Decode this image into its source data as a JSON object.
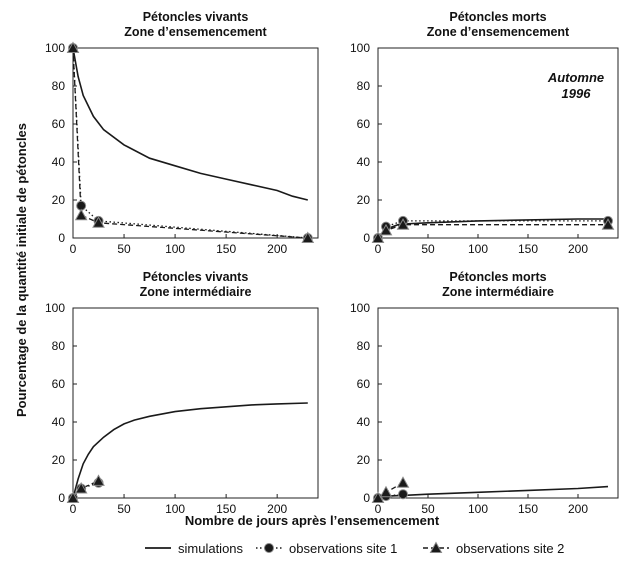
{
  "chart_data": [
    {
      "type": "line",
      "title": [
        "Pétoncles vivants",
        "Zone d’ensemencement"
      ],
      "xlim": [
        0,
        240
      ],
      "ylim": [
        0,
        100
      ],
      "xticks": [
        "0",
        "50",
        "100",
        "150",
        "200"
      ],
      "yticks": [
        "0",
        "20",
        "40",
        "60",
        "80",
        "100"
      ],
      "annotation": [],
      "series": [
        {
          "name": "simulations",
          "style": "solid",
          "x": [
            0,
            5,
            10,
            20,
            30,
            50,
            75,
            100,
            125,
            150,
            175,
            200,
            215,
            230
          ],
          "y": [
            100,
            85,
            75,
            64,
            57,
            49,
            42,
            38,
            34,
            31,
            28,
            25,
            22,
            20
          ]
        },
        {
          "name": "observations site 1",
          "style": "dotted",
          "marker": "circle",
          "x": [
            0,
            8,
            25,
            230
          ],
          "y": [
            100,
            17,
            9,
            0
          ]
        },
        {
          "name": "observations site 2",
          "style": "dashed",
          "marker": "triangle",
          "x": [
            0,
            8,
            25,
            230
          ],
          "y": [
            100,
            12,
            8,
            0
          ]
        }
      ]
    },
    {
      "type": "line",
      "title": [
        "Pétoncles morts",
        "Zone d’ensemencement"
      ],
      "xlim": [
        0,
        240
      ],
      "ylim": [
        0,
        100
      ],
      "xticks": [
        "0",
        "50",
        "100",
        "150",
        "200"
      ],
      "yticks": [
        "0",
        "20",
        "40",
        "60",
        "80",
        "100"
      ],
      "annotation": [
        "Automne",
        "1996"
      ],
      "series": [
        {
          "name": "simulations",
          "style": "solid",
          "x": [
            0,
            5,
            10,
            20,
            30,
            50,
            100,
            150,
            200,
            230
          ],
          "y": [
            0,
            3,
            5,
            7,
            7.5,
            8,
            9,
            9.5,
            10,
            10
          ]
        },
        {
          "name": "observations site 1",
          "style": "dotted",
          "marker": "circle",
          "x": [
            0,
            8,
            25,
            230
          ],
          "y": [
            0,
            6,
            9,
            9
          ]
        },
        {
          "name": "observations site 2",
          "style": "dashed",
          "marker": "triangle",
          "x": [
            0,
            8,
            25,
            230
          ],
          "y": [
            0,
            4,
            7,
            7
          ]
        }
      ]
    },
    {
      "type": "line",
      "title": [
        "Pétoncles vivants",
        "Zone intermédiaire"
      ],
      "xlim": [
        0,
        240
      ],
      "ylim": [
        0,
        100
      ],
      "xticks": [
        "0",
        "50",
        "100",
        "150",
        "200"
      ],
      "yticks": [
        "0",
        "20",
        "40",
        "60",
        "80",
        "100"
      ],
      "annotation": [],
      "series": [
        {
          "name": "simulations",
          "style": "solid",
          "x": [
            0,
            5,
            10,
            15,
            20,
            30,
            40,
            50,
            60,
            75,
            100,
            125,
            150,
            175,
            200,
            230
          ],
          "y": [
            0,
            10,
            18,
            23,
            27,
            32,
            36,
            39,
            41,
            43,
            45.5,
            47,
            48,
            49,
            49.5,
            50
          ]
        },
        {
          "name": "observations site 1",
          "style": "dotted",
          "marker": "circle",
          "x": [
            0,
            8,
            25
          ],
          "y": [
            0,
            5,
            8
          ]
        },
        {
          "name": "observations site 2",
          "style": "dashed",
          "marker": "triangle",
          "x": [
            0,
            8,
            25
          ],
          "y": [
            0,
            5,
            9
          ]
        }
      ]
    },
    {
      "type": "line",
      "title": [
        "Pétoncles morts",
        "Zone intermédiaire"
      ],
      "xlim": [
        0,
        240
      ],
      "ylim": [
        0,
        100
      ],
      "xticks": [
        "0",
        "50",
        "100",
        "150",
        "200"
      ],
      "yticks": [
        "0",
        "20",
        "40",
        "60",
        "80",
        "100"
      ],
      "annotation": [],
      "series": [
        {
          "name": "simulations",
          "style": "solid",
          "x": [
            0,
            10,
            30,
            50,
            100,
            150,
            200,
            230
          ],
          "y": [
            0,
            1,
            1.5,
            2,
            3,
            4,
            5,
            6
          ]
        },
        {
          "name": "observations site 1",
          "style": "dotted",
          "marker": "circle",
          "x": [
            0,
            8,
            25
          ],
          "y": [
            0,
            1,
            2
          ]
        },
        {
          "name": "observations site 2",
          "style": "dashed",
          "marker": "triangle",
          "x": [
            0,
            8,
            25
          ],
          "y": [
            0,
            3,
            8
          ]
        }
      ]
    }
  ],
  "ylabel": "Pourcentage de la quantité initiale de pétoncles",
  "xlabel": "Nombre de jours après l’ensemencement",
  "legend": [
    {
      "label": "simulations",
      "style": "solid",
      "marker": "none"
    },
    {
      "label": "observations site 1",
      "style": "dotted",
      "marker": "circle"
    },
    {
      "label": "observations site 2",
      "style": "dashed",
      "marker": "triangle"
    }
  ]
}
